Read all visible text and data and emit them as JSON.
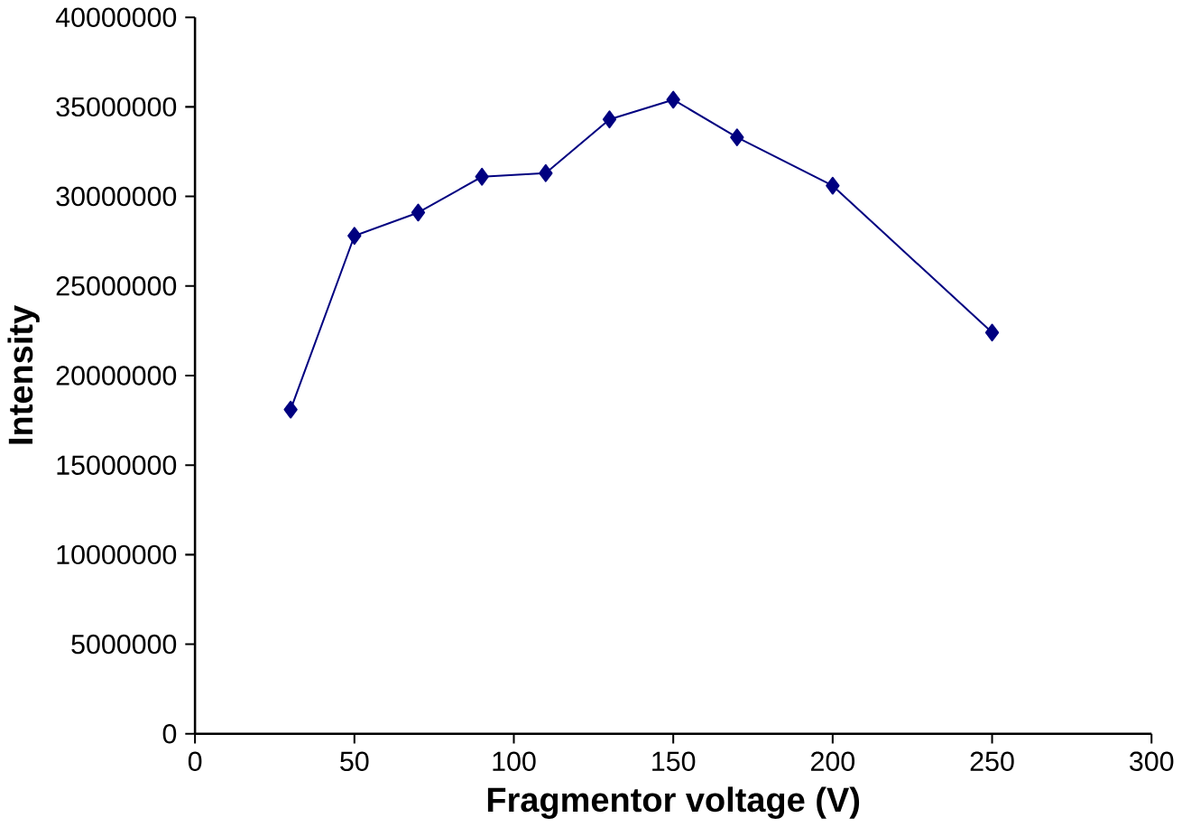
{
  "chart_data": {
    "type": "line",
    "xlabel": "Fragmentor voltage (V)",
    "ylabel": "Intensity",
    "x": [
      30,
      50,
      70,
      90,
      110,
      130,
      150,
      170,
      200,
      250
    ],
    "series": [
      {
        "color": "#000080",
        "values": [
          18100000,
          27800000,
          29100000,
          31100000,
          31300000,
          34300000,
          35400000,
          33300000,
          30600000,
          22400000
        ]
      }
    ],
    "xlim": [
      0,
      300
    ],
    "xticks": [
      0,
      50,
      100,
      150,
      200,
      250,
      300
    ],
    "ylim": [
      0,
      40000000
    ],
    "yticks": [
      0,
      5000000,
      10000000,
      15000000,
      20000000,
      25000000,
      30000000,
      35000000,
      40000000
    ],
    "marker": "diamond",
    "line_style": "solid",
    "grid": false
  }
}
